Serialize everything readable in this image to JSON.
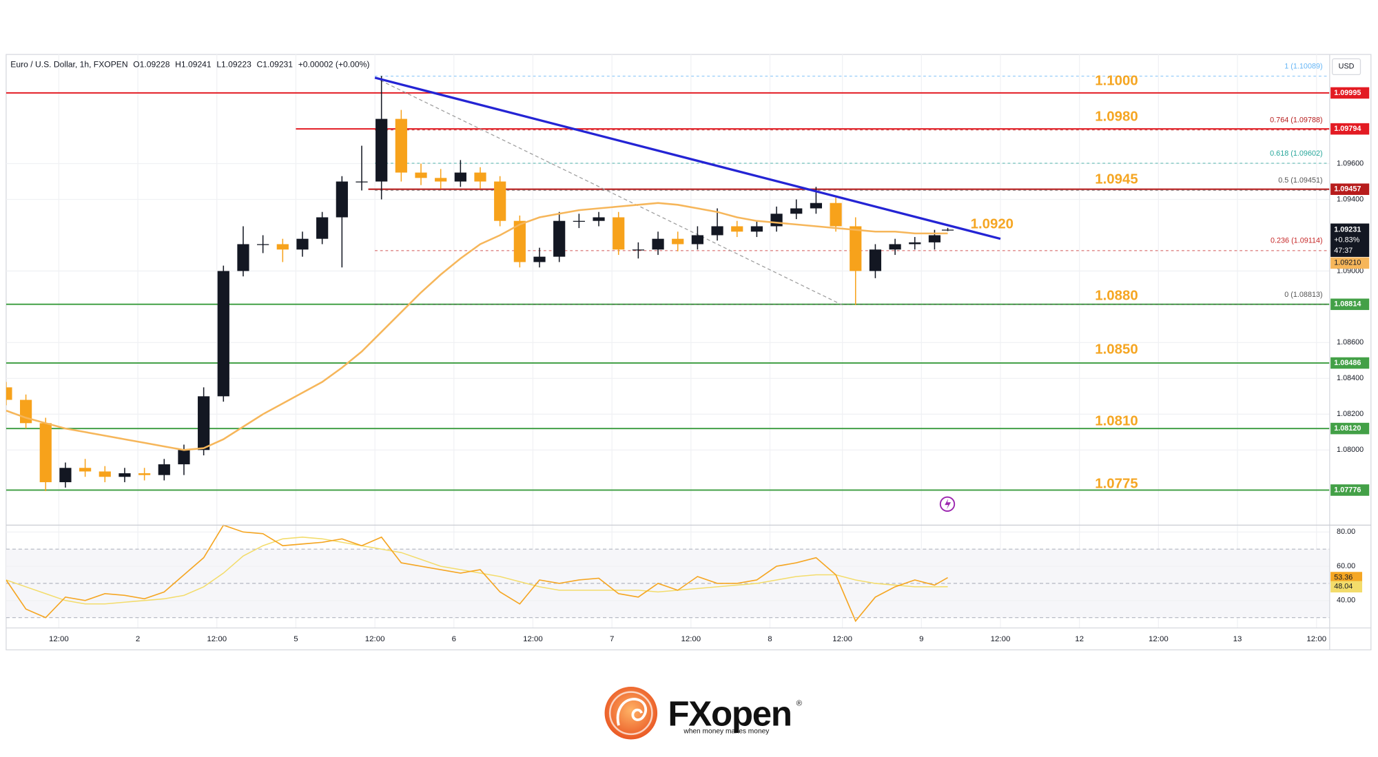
{
  "chart_data": {
    "type": "candlestick",
    "header": {
      "symbol": "Euro / U.S. Dollar, 1h, FXOPEN",
      "ohlc": [
        "O1.09228",
        "H1.09241",
        "L1.09223",
        "C1.09231",
        "+0.00002 (+0.00%)"
      ]
    },
    "currency": "USD",
    "x": [
      0,
      3,
      6,
      9,
      12,
      15,
      18,
      21,
      24,
      27,
      30,
      33,
      36,
      39,
      42,
      45,
      48,
      51,
      54,
      57,
      60,
      63,
      66,
      69,
      72,
      75,
      78,
      81,
      84,
      87,
      90,
      93,
      96,
      99,
      102,
      105,
      108,
      111,
      114,
      117,
      120,
      123,
      126,
      129,
      132,
      135,
      138,
      141,
      143
    ],
    "open": [
      1.0835,
      1.0828,
      1.0815,
      1.0782,
      1.079,
      1.0788,
      1.0785,
      1.0787,
      1.0786,
      1.0792,
      1.08,
      1.083,
      1.09,
      1.0915,
      1.0915,
      1.0912,
      1.0918,
      1.093,
      1.095,
      1.095,
      1.0985,
      1.0955,
      1.0952,
      1.095,
      1.0955,
      1.095,
      1.0928,
      1.0905,
      1.0908,
      1.0928,
      1.0928,
      1.093,
      1.0912,
      1.0912,
      1.0918,
      1.0915,
      1.092,
      1.0925,
      1.0922,
      1.0925,
      1.0932,
      1.0935,
      1.0938,
      1.0925,
      1.09,
      1.0912,
      1.0915,
      1.0916,
      1.09228
    ],
    "high": [
      1.0838,
      1.0831,
      1.0818,
      1.0793,
      1.0795,
      1.0791,
      1.079,
      1.079,
      1.0795,
      1.0803,
      1.0835,
      1.0903,
      1.0925,
      1.092,
      1.0918,
      1.0922,
      1.0933,
      1.0953,
      1.097,
      1.1009,
      1.099,
      1.096,
      1.0957,
      1.0962,
      1.0958,
      1.0953,
      1.0931,
      1.0913,
      1.0933,
      1.0932,
      1.0933,
      1.0933,
      1.0916,
      1.0922,
      1.0922,
      1.0925,
      1.0935,
      1.0928,
      1.0928,
      1.0936,
      1.094,
      1.0947,
      1.0941,
      1.093,
      1.0915,
      1.0918,
      1.0919,
      1.0923,
      1.09241
    ],
    "low": [
      1.0825,
      1.0812,
      1.0777,
      1.0779,
      1.0785,
      1.0782,
      1.0782,
      1.0783,
      1.0783,
      1.0786,
      1.0797,
      1.0827,
      1.0897,
      1.091,
      1.0905,
      1.0908,
      1.0915,
      1.0902,
      1.0945,
      1.094,
      1.095,
      1.0948,
      1.0946,
      1.0947,
      1.0946,
      1.0925,
      1.0902,
      1.0902,
      1.0905,
      1.0924,
      1.0925,
      1.0909,
      1.0907,
      1.0909,
      1.0911,
      1.0912,
      1.0917,
      1.0919,
      1.0919,
      1.0922,
      1.0929,
      1.0932,
      1.0922,
      1.0881,
      1.0896,
      1.0909,
      1.0912,
      1.0912,
      1.09223
    ],
    "close": [
      1.0828,
      1.0815,
      1.0782,
      1.079,
      1.0788,
      1.0785,
      1.0787,
      1.0786,
      1.0792,
      1.08,
      1.083,
      1.09,
      1.0915,
      1.0915,
      1.0912,
      1.0918,
      1.093,
      1.095,
      1.095,
      1.0985,
      1.0955,
      1.0952,
      1.095,
      1.0955,
      1.095,
      1.0928,
      1.0905,
      1.0908,
      1.0928,
      1.0928,
      1.093,
      1.0912,
      1.0912,
      1.0918,
      1.0915,
      1.092,
      1.0925,
      1.0922,
      1.0925,
      1.0932,
      1.0935,
      1.0938,
      1.0925,
      1.09,
      1.0912,
      1.0915,
      1.0916,
      1.092,
      1.09231
    ],
    "up_color": "#131722",
    "down_color": "#f7a21b",
    "moving_average": {
      "color": "#f6b65a",
      "values": [
        1.0822,
        1.0818,
        1.0815,
        1.0812,
        1.081,
        1.0808,
        1.0806,
        1.0804,
        1.0802,
        1.08,
        1.0801,
        1.0806,
        1.0813,
        1.082,
        1.0826,
        1.0832,
        1.0838,
        1.0846,
        1.0855,
        1.0866,
        1.0877,
        1.0888,
        1.0898,
        1.0907,
        1.0915,
        1.092,
        1.0926,
        1.093,
        1.0932,
        1.0934,
        1.0935,
        1.0936,
        1.0937,
        1.0938,
        1.0937,
        1.0935,
        1.0933,
        1.093,
        1.0928,
        1.0927,
        1.0926,
        1.0925,
        1.0924,
        1.0923,
        1.0922,
        1.0922,
        1.0921,
        1.0921,
        1.0921
      ]
    },
    "ma_tag": {
      "value": 1.0921,
      "label": "1.09210"
    },
    "countdown": {
      "change": "+0.83%",
      "time": "47:37"
    },
    "xlim": [
      0,
      201
    ],
    "xticks": [
      {
        "value": 8,
        "label": "12:00"
      },
      {
        "value": 20,
        "label": "2"
      },
      {
        "value": 32,
        "label": "12:00"
      },
      {
        "value": 44,
        "label": "5"
      },
      {
        "value": 56,
        "label": "12:00"
      },
      {
        "value": 68,
        "label": "6"
      },
      {
        "value": 80,
        "label": "12:00"
      },
      {
        "value": 92,
        "label": "7"
      },
      {
        "value": 104,
        "label": "12:00"
      },
      {
        "value": 116,
        "label": "8"
      },
      {
        "value": 127,
        "label": "12:00"
      },
      {
        "value": 139,
        "label": "9"
      },
      {
        "value": 151,
        "label": "12:00"
      },
      {
        "value": 163,
        "label": "12"
      },
      {
        "value": 175,
        "label": "12:00"
      },
      {
        "value": 187,
        "label": "13"
      },
      {
        "value": 199,
        "label": "12:00"
      }
    ],
    "ylim": [
      1.0758,
      1.1021
    ],
    "yticks": [
      {
        "value": 1.096,
        "label": "1.09600"
      },
      {
        "value": 1.094,
        "label": "1.09400"
      },
      {
        "value": 1.09,
        "label": "1.09000"
      },
      {
        "value": 1.086,
        "label": "1.08600"
      },
      {
        "value": 1.084,
        "label": "1.08400"
      },
      {
        "value": 1.082,
        "label": "1.08200"
      },
      {
        "value": 1.08,
        "label": "1.08000"
      }
    ],
    "grid": true,
    "levels": [
      {
        "value": 1.09995,
        "color": "#e31b23",
        "from": 0
      },
      {
        "value": 1.09794,
        "color": "#e31b23",
        "from": 44
      },
      {
        "value": 1.09457,
        "color": "#b71c1c",
        "from": 55
      },
      {
        "value": 1.08814,
        "color": "#43a047",
        "from": 0
      },
      {
        "value": 1.08486,
        "color": "#43a047",
        "from": 0
      },
      {
        "value": 1.0812,
        "label": "1.08120",
        "color": "#43a047",
        "from": 0
      },
      {
        "value": 1.07776,
        "color": "#43a047",
        "from": 0
      }
    ],
    "level_labels": [
      {
        "value": 1.1,
        "label": "1.1000"
      },
      {
        "value": 1.098,
        "label": "1.0980"
      },
      {
        "value": 1.0945
      },
      {
        "value": 1.092,
        "label": "1.0920"
      },
      {
        "value": 1.088,
        "label": "1.0880"
      },
      {
        "value": 1.085,
        "label": "1.0850"
      },
      {
        "value": 1.081,
        "label": "1.0810"
      },
      {
        "value": 1.0775
      }
    ],
    "level_label_color": "#f5a623",
    "fib": {
      "from": 56,
      "levels": [
        {
          "value": 1.10089,
          "label": "1 (1.10089)",
          "color": "#64b5f6"
        },
        {
          "value": 1.09788,
          "label": "0.764 (1.09788)",
          "color": "#b71c1c"
        },
        {
          "value": 1.09602,
          "label": "0.618 (1.09602)",
          "color": "#26a69a"
        },
        {
          "value": 1.09451,
          "label": "0.5 (1.09451)",
          "color": "#555555"
        },
        {
          "value": 1.09114,
          "label": "0.236 (1.09114)",
          "color": "#c62828"
        },
        {
          "value": 1.08813,
          "label": "0 (1.08813)",
          "color": "#555555"
        }
      ]
    },
    "trendline": {
      "color": "#2424d4",
      "points": [
        {
          "x": 56,
          "y": 1.1008
        },
        {
          "x": 151,
          "y": 1.0918
        }
      ]
    },
    "fib_diagonal": {
      "color": "#9e9e9e",
      "points": [
        {
          "x": 56,
          "y": 1.1008
        },
        {
          "x": 127,
          "y": 1.0881
        }
      ]
    },
    "rsi": {
      "ylim": [
        24,
        84
      ],
      "yticks": [
        {
          "value": 80,
          "label": "80.00"
        },
        {
          "value": 60,
          "label": "60.00"
        },
        {
          "value": 40,
          "label": "40.00"
        }
      ],
      "bands": [
        70,
        50,
        30
      ],
      "color": "#f5a623",
      "ma_color": "#f3dc6b",
      "values": [
        52,
        35,
        30,
        42,
        40,
        44,
        43,
        41,
        45,
        55,
        65,
        84,
        80,
        79,
        72,
        73,
        74,
        76,
        72,
        77,
        62,
        60,
        58,
        56,
        58,
        45,
        38,
        52,
        50,
        52,
        53,
        44,
        42,
        50,
        46,
        54,
        50,
        50,
        52,
        60,
        62,
        65,
        55,
        28,
        42,
        48,
        52,
        49,
        53.36
      ],
      "ma_values": [
        52,
        48,
        44,
        40,
        38,
        38,
        39,
        40,
        41,
        43,
        48,
        56,
        66,
        72,
        76,
        77,
        76,
        74,
        72,
        70,
        68,
        64,
        60,
        58,
        56,
        54,
        51,
        48,
        46,
        46,
        46,
        46,
        46,
        45,
        46,
        47,
        48,
        49,
        50,
        52,
        54,
        55,
        55,
        52,
        50,
        49,
        48,
        48,
        48.04
      ]
    }
  },
  "logo": {
    "fx": "FX",
    "open": "open",
    "mark": "®",
    "tagline": "when money makes money"
  }
}
